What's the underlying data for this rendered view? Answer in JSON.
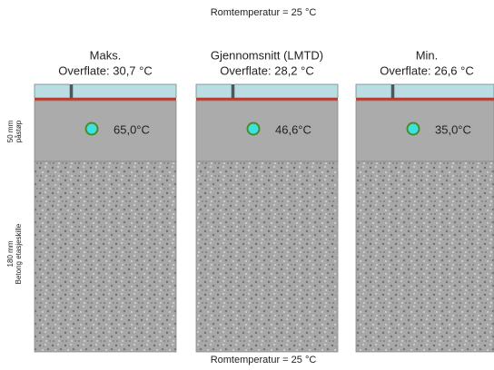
{
  "top_label": "Romtemperatur = 25 °C",
  "bottom_label": "Romtemperatur = 25 °C",
  "side_labels": {
    "screed": [
      "50 mm",
      "påstøp"
    ],
    "concrete": [
      "180 mm",
      "Betong etasjeskille"
    ]
  },
  "panels": [
    {
      "heading": "Maks.",
      "surface": "Overflate: 30,7 °C",
      "pipe_temp": "65,0°C"
    },
    {
      "heading": "Gjennomsnitt (LMTD)",
      "surface": "Overflate: 28,2 °C",
      "pipe_temp": "46,6°C"
    },
    {
      "heading": "Min.",
      "surface": "Overflate: 26,6 °C",
      "pipe_temp": "35,0°C"
    }
  ]
}
